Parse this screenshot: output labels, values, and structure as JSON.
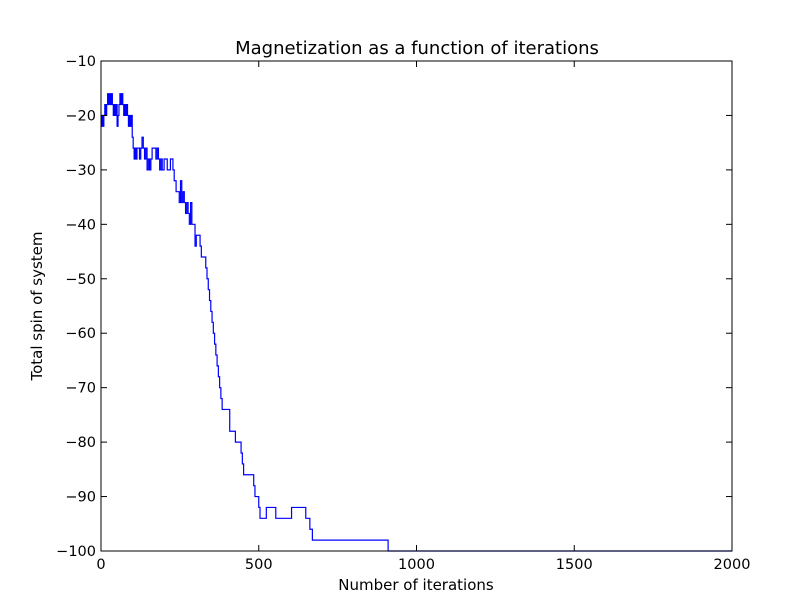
{
  "chart_data": {
    "type": "line",
    "title": "Magnetization as a function of iterations",
    "xlabel": "Number of iterations",
    "ylabel": "Total spin of system",
    "xlim": [
      0,
      2000
    ],
    "ylim": [
      -100,
      -10
    ],
    "xticks": [
      0,
      500,
      1000,
      1500,
      2000
    ],
    "xtick_labels": [
      "0",
      "500",
      "1000",
      "1500",
      "2000"
    ],
    "yticks": [
      -10,
      -20,
      -30,
      -40,
      -50,
      -60,
      -70,
      -80,
      -90,
      -100
    ],
    "ytick_labels": [
      "−10",
      "−20",
      "−30",
      "−40",
      "−50",
      "−60",
      "−70",
      "−80",
      "−90",
      "−100"
    ],
    "grid": false,
    "series": [
      {
        "color": "#0000ff",
        "steps": [
          [
            0,
            -22
          ],
          [
            3,
            -20
          ],
          [
            6,
            -22
          ],
          [
            9,
            -20
          ],
          [
            12,
            -18
          ],
          [
            15,
            -20
          ],
          [
            18,
            -18
          ],
          [
            21,
            -16
          ],
          [
            24,
            -18
          ],
          [
            27,
            -16
          ],
          [
            30,
            -18
          ],
          [
            33,
            -16
          ],
          [
            36,
            -18
          ],
          [
            39,
            -20
          ],
          [
            42,
            -18
          ],
          [
            45,
            -20
          ],
          [
            48,
            -18
          ],
          [
            51,
            -22
          ],
          [
            54,
            -20
          ],
          [
            57,
            -18
          ],
          [
            60,
            -16
          ],
          [
            63,
            -18
          ],
          [
            66,
            -16
          ],
          [
            69,
            -18
          ],
          [
            72,
            -20
          ],
          [
            75,
            -18
          ],
          [
            78,
            -20
          ],
          [
            81,
            -18
          ],
          [
            84,
            -20
          ],
          [
            87,
            -22
          ],
          [
            90,
            -20
          ],
          [
            93,
            -22
          ],
          [
            96,
            -20
          ],
          [
            99,
            -24
          ],
          [
            102,
            -26
          ],
          [
            105,
            -28
          ],
          [
            108,
            -26
          ],
          [
            111,
            -28
          ],
          [
            114,
            -26
          ],
          [
            118,
            -26
          ],
          [
            122,
            -28
          ],
          [
            126,
            -26
          ],
          [
            130,
            -24
          ],
          [
            134,
            -26
          ],
          [
            138,
            -28
          ],
          [
            142,
            -26
          ],
          [
            146,
            -30
          ],
          [
            150,
            -28
          ],
          [
            154,
            -30
          ],
          [
            158,
            -28
          ],
          [
            162,
            -26
          ],
          [
            168,
            -26
          ],
          [
            174,
            -28
          ],
          [
            178,
            -26
          ],
          [
            182,
            -28
          ],
          [
            186,
            -30
          ],
          [
            190,
            -28
          ],
          [
            194,
            -30
          ],
          [
            200,
            -28
          ],
          [
            210,
            -30
          ],
          [
            220,
            -28
          ],
          [
            228,
            -30
          ],
          [
            232,
            -32
          ],
          [
            238,
            -34
          ],
          [
            244,
            -34
          ],
          [
            248,
            -36
          ],
          [
            252,
            -32
          ],
          [
            256,
            -36
          ],
          [
            260,
            -34
          ],
          [
            264,
            -36
          ],
          [
            268,
            -38
          ],
          [
            272,
            -36
          ],
          [
            276,
            -38
          ],
          [
            280,
            -40
          ],
          [
            284,
            -36
          ],
          [
            288,
            -40
          ],
          [
            294,
            -40
          ],
          [
            298,
            -44
          ],
          [
            302,
            -42
          ],
          [
            310,
            -42
          ],
          [
            314,
            -44
          ],
          [
            318,
            -46
          ],
          [
            328,
            -46
          ],
          [
            332,
            -48
          ],
          [
            336,
            -50
          ],
          [
            340,
            -52
          ],
          [
            344,
            -54
          ],
          [
            348,
            -56
          ],
          [
            352,
            -58
          ],
          [
            356,
            -60
          ],
          [
            360,
            -62
          ],
          [
            364,
            -64
          ],
          [
            368,
            -66
          ],
          [
            372,
            -68
          ],
          [
            376,
            -70
          ],
          [
            380,
            -72
          ],
          [
            384,
            -74
          ],
          [
            404,
            -74
          ],
          [
            408,
            -78
          ],
          [
            422,
            -78
          ],
          [
            426,
            -80
          ],
          [
            440,
            -80
          ],
          [
            444,
            -82
          ],
          [
            448,
            -84
          ],
          [
            452,
            -86
          ],
          [
            480,
            -86
          ],
          [
            484,
            -88
          ],
          [
            488,
            -90
          ],
          [
            496,
            -90
          ],
          [
            500,
            -92
          ],
          [
            504,
            -94
          ],
          [
            520,
            -94
          ],
          [
            524,
            -92
          ],
          [
            550,
            -92
          ],
          [
            554,
            -94
          ],
          [
            600,
            -94
          ],
          [
            604,
            -92
          ],
          [
            645,
            -92
          ],
          [
            649,
            -94
          ],
          [
            658,
            -94
          ],
          [
            662,
            -96
          ],
          [
            666,
            -96
          ],
          [
            670,
            -98
          ],
          [
            905,
            -98
          ],
          [
            910,
            -100
          ],
          [
            2000,
            -100
          ]
        ]
      }
    ]
  }
}
